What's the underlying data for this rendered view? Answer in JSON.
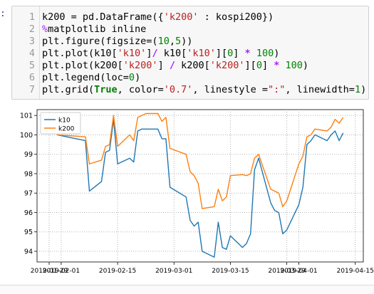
{
  "cell": {
    "prompt": ":",
    "lines": [
      {
        "n": "1",
        "segs": [
          [
            "t",
            "k200 = pd.DataFrame({"
          ],
          [
            "s",
            "'k200'"
          ],
          [
            "t",
            " : kospi200})"
          ]
        ]
      },
      {
        "n": "2",
        "segs": [
          [
            "m",
            "%"
          ],
          [
            "t",
            "matplotlib inline"
          ]
        ]
      },
      {
        "n": "3",
        "segs": [
          [
            "t",
            "plt.figure(figsize=("
          ],
          [
            "n",
            "10"
          ],
          [
            "t",
            ","
          ],
          [
            "n",
            "5"
          ],
          [
            "t",
            "))"
          ]
        ]
      },
      {
        "n": "4",
        "segs": [
          [
            "t",
            "plt.plot(k10["
          ],
          [
            "s",
            "'k10'"
          ],
          [
            "t",
            "]"
          ],
          [
            "o",
            "/"
          ],
          [
            "t",
            " k10["
          ],
          [
            "s",
            "'k10'"
          ],
          [
            "t",
            "]["
          ],
          [
            "n",
            "0"
          ],
          [
            "t",
            "] "
          ],
          [
            "o",
            "*"
          ],
          [
            "t",
            " "
          ],
          [
            "n",
            "100"
          ],
          [
            "t",
            ")"
          ]
        ]
      },
      {
        "n": "5",
        "segs": [
          [
            "t",
            "plt.plot(k200["
          ],
          [
            "s",
            "'k200'"
          ],
          [
            "t",
            "] "
          ],
          [
            "o",
            "/"
          ],
          [
            "t",
            " k200["
          ],
          [
            "s",
            "'k200'"
          ],
          [
            "t",
            "]["
          ],
          [
            "n",
            "0"
          ],
          [
            "t",
            "] "
          ],
          [
            "o",
            "*"
          ],
          [
            "t",
            " "
          ],
          [
            "n",
            "100"
          ],
          [
            "t",
            ")"
          ]
        ]
      },
      {
        "n": "6",
        "segs": [
          [
            "t",
            "plt.legend(loc="
          ],
          [
            "n",
            "0"
          ],
          [
            "t",
            ")"
          ]
        ]
      },
      {
        "n": "7",
        "segs": [
          [
            "t",
            "plt.grid("
          ],
          [
            "k",
            "True"
          ],
          [
            "t",
            ", color="
          ],
          [
            "s",
            "'0.7'"
          ],
          [
            "t",
            ", linestyle ="
          ],
          [
            "s",
            "\":\""
          ],
          [
            "t",
            ", linewidth="
          ],
          [
            "n",
            "1"
          ],
          [
            "t",
            ")"
          ]
        ]
      }
    ]
  },
  "colors": {
    "k10": "#1f77b4",
    "k200": "#ff7f0e",
    "grid": "#b3b3b3"
  },
  "chart_data": {
    "type": "line",
    "title": "",
    "xlabel": "",
    "ylabel": "",
    "x_ticks": [
      "2019-01-29",
      "2019-02-01",
      "2019-02-15",
      "2019-03-01",
      "2019-03-15",
      "2019-03-29",
      "2019-04-01",
      "2019-04-15"
    ],
    "yticks": [
      94,
      95,
      96,
      97,
      98,
      99,
      100,
      101
    ],
    "xlim": [
      "2019-01-26",
      "2019-04-17"
    ],
    "ylim": [
      93.45,
      101.3
    ],
    "grid": true,
    "legend": "top-left",
    "x": [
      "2019-01-31",
      "2019-02-07",
      "2019-02-08",
      "2019-02-11",
      "2019-02-12",
      "2019-02-13",
      "2019-02-14",
      "2019-02-15",
      "2019-02-18",
      "2019-02-19",
      "2019-02-20",
      "2019-02-21",
      "2019-02-22",
      "2019-02-25",
      "2019-02-26",
      "2019-02-27",
      "2019-02-28",
      "2019-03-04",
      "2019-03-05",
      "2019-03-06",
      "2019-03-07",
      "2019-03-08",
      "2019-03-11",
      "2019-03-12",
      "2019-03-13",
      "2019-03-14",
      "2019-03-15",
      "2019-03-18",
      "2019-03-19",
      "2019-03-20",
      "2019-03-21",
      "2019-03-22",
      "2019-03-25",
      "2019-03-26",
      "2019-03-27",
      "2019-03-28",
      "2019-03-29",
      "2019-04-01",
      "2019-04-02",
      "2019-04-03",
      "2019-04-04",
      "2019-04-05",
      "2019-04-08",
      "2019-04-09",
      "2019-04-10",
      "2019-04-11",
      "2019-04-12"
    ],
    "series": [
      {
        "name": "k10",
        "values": [
          100.0,
          99.7,
          97.1,
          97.6,
          99.1,
          99.2,
          100.8,
          98.5,
          98.8,
          98.6,
          100.2,
          100.3,
          100.3,
          100.3,
          99.8,
          99.8,
          97.3,
          96.8,
          95.6,
          95.3,
          95.5,
          94.0,
          93.7,
          95.5,
          94.2,
          94.1,
          94.8,
          94.2,
          94.4,
          94.9,
          98.2,
          98.8,
          96.5,
          96.1,
          96.0,
          94.9,
          95.1,
          96.4,
          97.3,
          99.5,
          99.7,
          100.0,
          99.7,
          100.0,
          100.2,
          99.7,
          100.1
        ]
      },
      {
        "name": "k200",
        "values": [
          100.0,
          99.9,
          98.5,
          98.7,
          99.4,
          99.5,
          101.0,
          99.4,
          100.0,
          99.7,
          100.9,
          101.0,
          101.1,
          101.1,
          100.7,
          100.9,
          99.3,
          99.0,
          98.1,
          97.9,
          97.5,
          96.2,
          96.3,
          97.2,
          96.6,
          96.8,
          97.9,
          97.95,
          97.9,
          98.0,
          98.8,
          99.0,
          97.2,
          97.1,
          97.0,
          96.3,
          96.6,
          98.5,
          98.9,
          99.9,
          100.0,
          100.3,
          100.2,
          100.4,
          100.8,
          100.6,
          100.9
        ]
      }
    ]
  }
}
